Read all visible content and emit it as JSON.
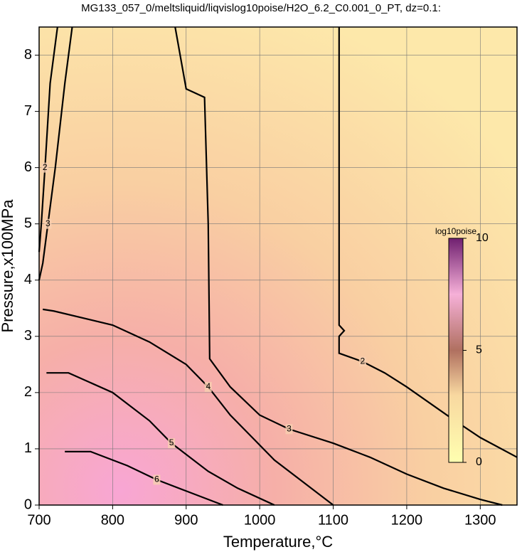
{
  "chart_data": {
    "type": "contour",
    "title": "MG133_057_0/meltsliquid/liqvislog10poise/H2O_6.2_C0.001_0_PT, dz=0.1:",
    "xlabel": "Temperature,°C",
    "ylabel": "Pressure,x100MPa",
    "xlim": [
      700,
      1350
    ],
    "ylim": [
      0,
      8.5
    ],
    "xticks": [
      700,
      800,
      900,
      1000,
      1100,
      1200,
      1300
    ],
    "yticks": [
      0,
      1,
      2,
      3,
      4,
      5,
      6,
      7,
      8
    ],
    "grid": true,
    "colorbar": {
      "label": "log10poise",
      "lim": [
        0,
        10
      ],
      "ticks": [
        0,
        5,
        10
      ]
    },
    "contours": [
      {
        "level": 2,
        "x": [
          1108,
          1108,
          1115,
          1108,
          1108,
          1140,
          1170,
          1200,
          1260,
          1300,
          1350
        ],
        "y": [
          8.5,
          3.2,
          3.1,
          3.0,
          2.7,
          2.55,
          2.35,
          2.1,
          1.55,
          1.2,
          0.85
        ]
      },
      {
        "level": 3,
        "x": [
          885,
          900,
          925,
          930,
          932,
          960,
          1000,
          1040,
          1100,
          1150,
          1200,
          1250,
          1300,
          1330
        ],
        "y": [
          8.5,
          7.4,
          7.25,
          5.0,
          2.6,
          2.1,
          1.6,
          1.35,
          1.1,
          0.85,
          0.55,
          0.3,
          0.1,
          0
        ]
      },
      {
        "level": 4,
        "x": [
          705,
          720,
          800,
          850,
          900,
          930,
          960,
          990,
          1020,
          1060,
          1100
        ],
        "y": [
          3.48,
          3.45,
          3.2,
          2.9,
          2.5,
          2.1,
          1.6,
          1.2,
          0.8,
          0.4,
          0
        ]
      },
      {
        "level": 5,
        "x": [
          710,
          740,
          800,
          850,
          880,
          930,
          970,
          1020
        ],
        "y": [
          2.35,
          2.35,
          2.0,
          1.5,
          1.1,
          0.6,
          0.3,
          0
        ]
      },
      {
        "level": 6,
        "x": [
          735,
          770,
          820,
          860,
          900,
          950
        ],
        "y": [
          0.95,
          0.95,
          0.7,
          0.45,
          0.25,
          0
        ]
      },
      {
        "level": 3,
        "x": [
          745,
          735,
          722,
          712,
          705,
          700
        ],
        "y": [
          8.5,
          7.5,
          6.0,
          5.0,
          4.3,
          4.0
        ]
      },
      {
        "level": 2,
        "x": [
          725,
          715,
          708,
          703,
          700
        ],
        "y": [
          8.5,
          7.5,
          6.0,
          5.0,
          4.5
        ]
      }
    ]
  }
}
